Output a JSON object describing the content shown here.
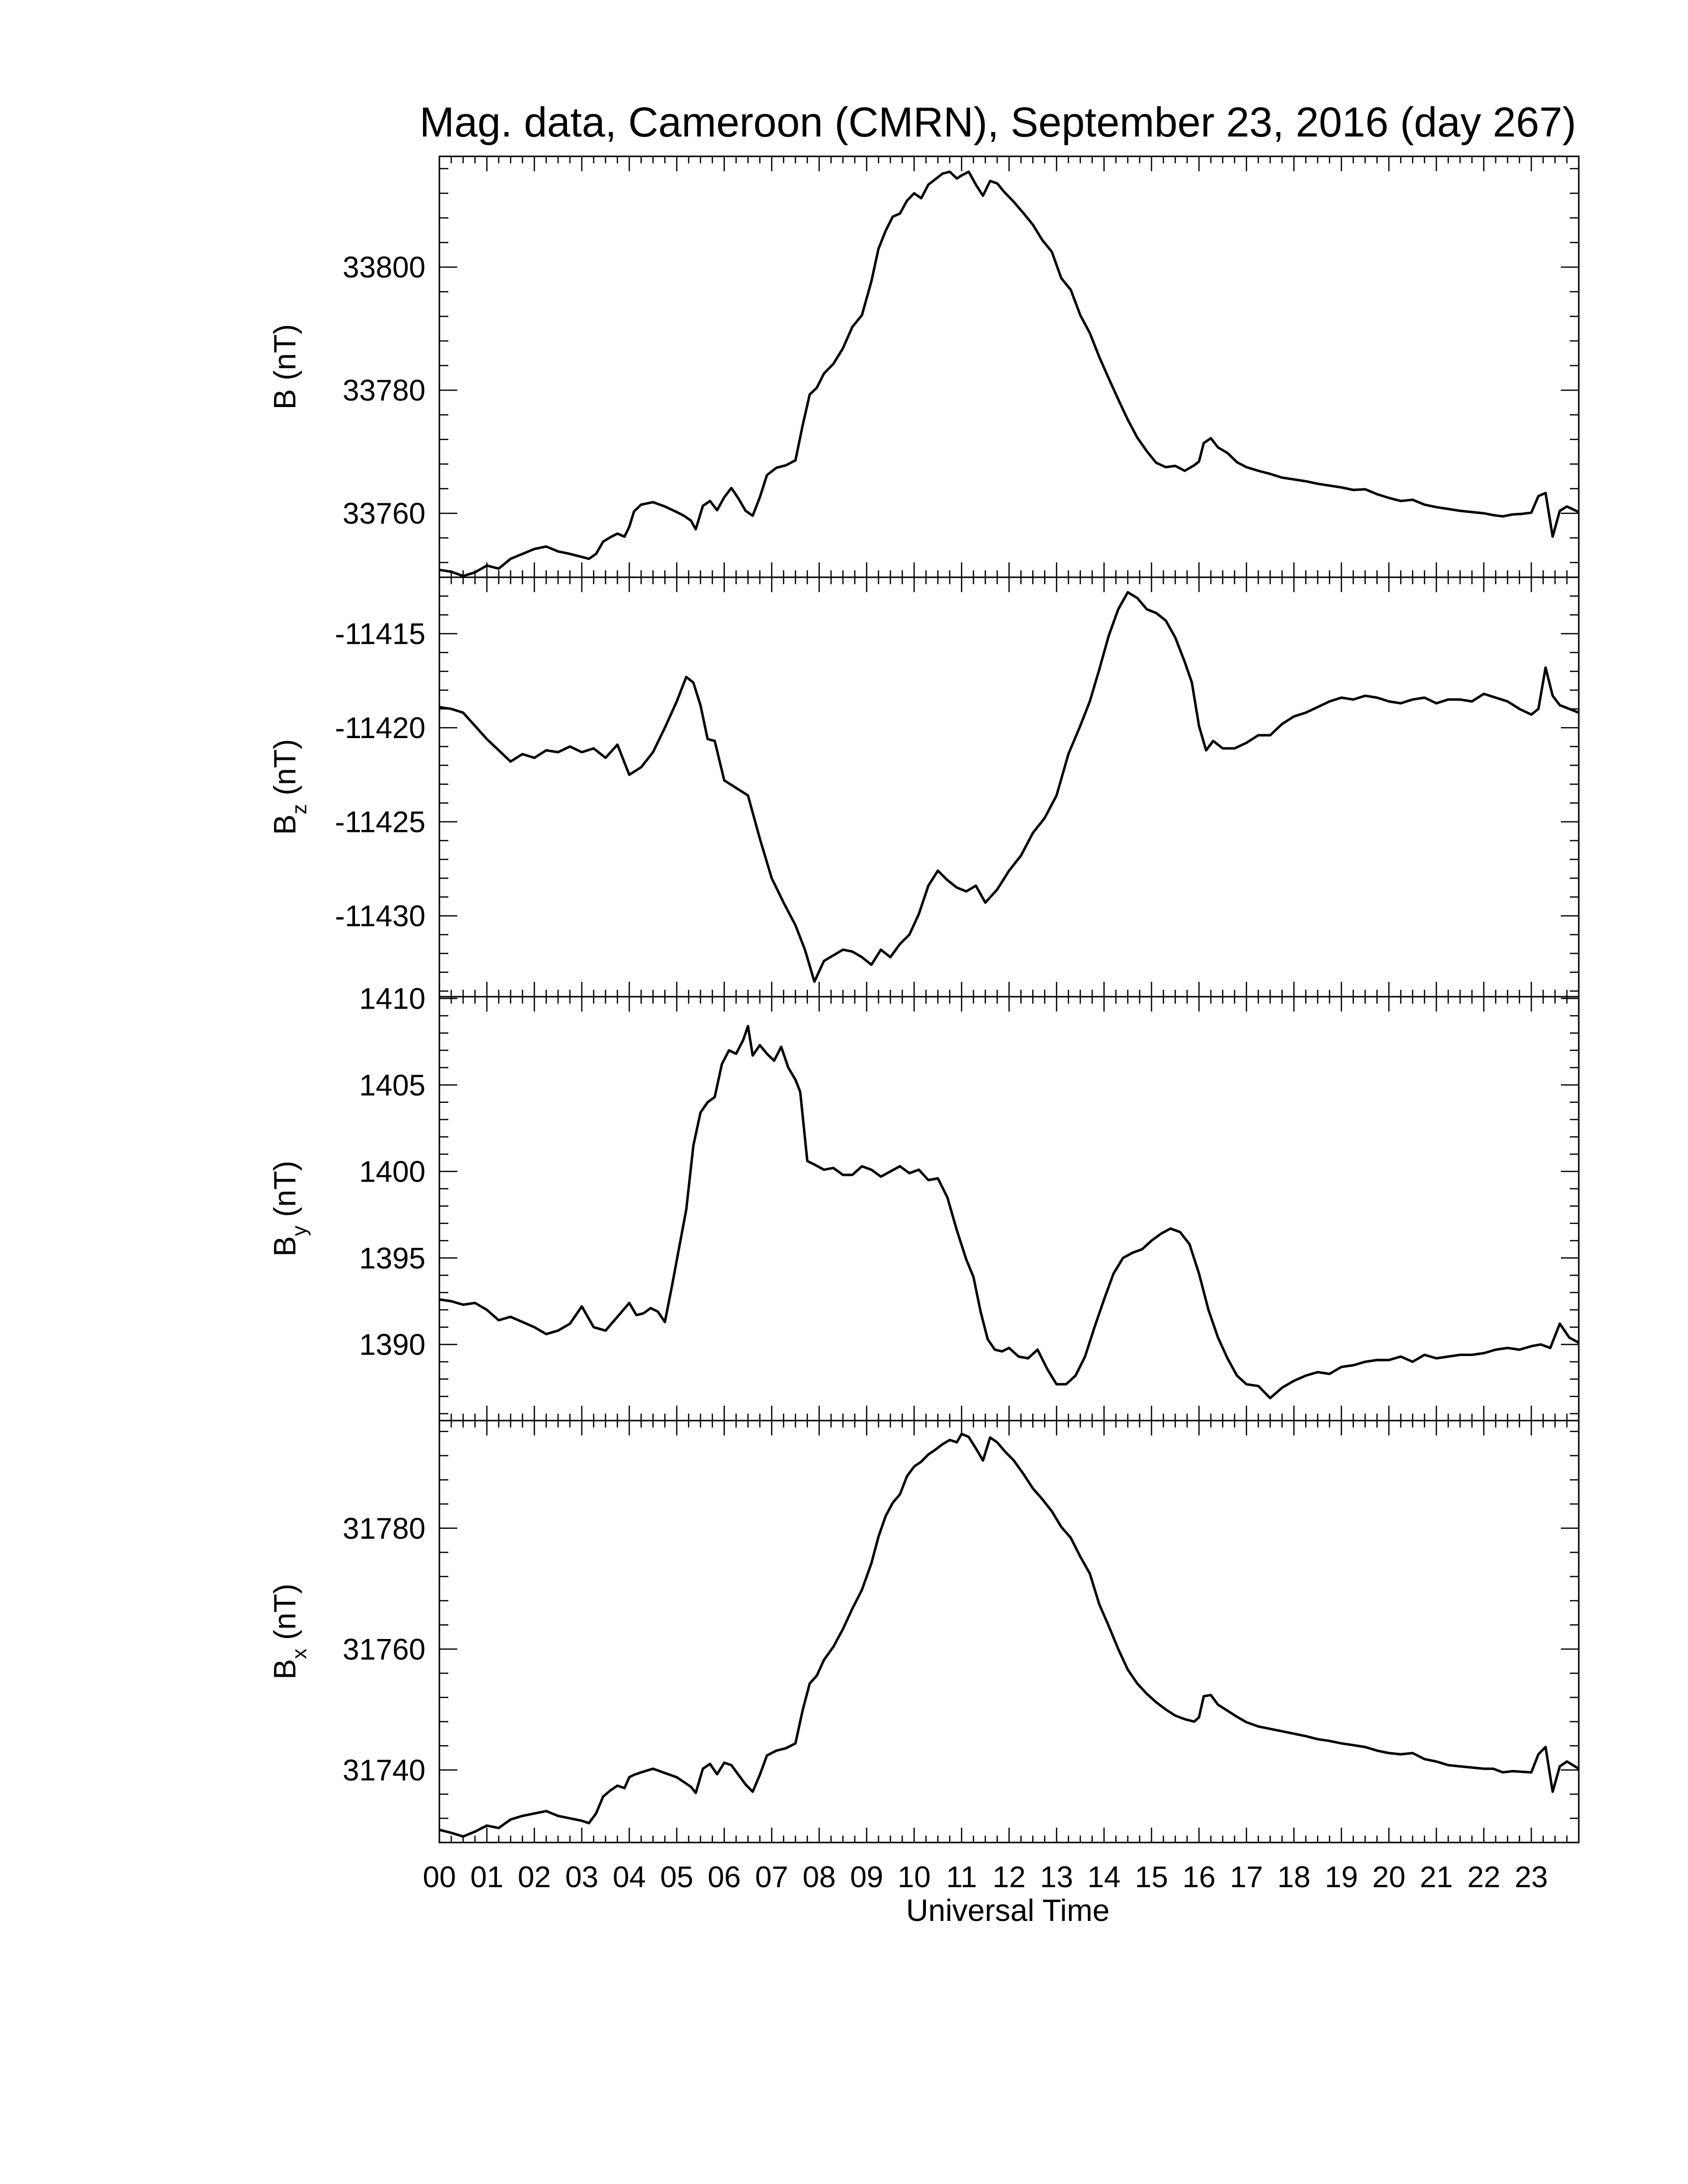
{
  "title": "Mag. data, Cameroon (CMRN), September 23, 2016 (day 267)",
  "xlabel": "Universal Time",
  "x_tick_labels": [
    "00",
    "01",
    "02",
    "03",
    "04",
    "05",
    "06",
    "07",
    "08",
    "09",
    "10",
    "11",
    "12",
    "13",
    "14",
    "15",
    "16",
    "17",
    "18",
    "19",
    "20",
    "21",
    "22",
    "23"
  ],
  "line_color": "#000000",
  "chart_data": [
    {
      "type": "line",
      "panel": "B",
      "ylabel_main": "B",
      "ylabel_sub": "",
      "ylabel_unit": "(nT)",
      "x_unit": "hours UT",
      "xlim": [
        0,
        24
      ],
      "ylim": [
        33749.6,
        33818.0
      ],
      "y_ticks": [
        33760,
        33780,
        33800
      ],
      "x": [
        0.0,
        0.25,
        0.5,
        0.75,
        1.0,
        1.25,
        1.5,
        1.75,
        2.0,
        2.25,
        2.5,
        2.75,
        3.0,
        3.15,
        3.3,
        3.45,
        3.6,
        3.75,
        3.9,
        4.0,
        4.1,
        4.25,
        4.5,
        4.75,
        5.0,
        5.15,
        5.3,
        5.4,
        5.55,
        5.7,
        5.85,
        6.0,
        6.15,
        6.3,
        6.45,
        6.6,
        6.75,
        6.9,
        7.1,
        7.3,
        7.5,
        7.65,
        7.8,
        7.95,
        8.1,
        8.3,
        8.5,
        8.7,
        8.9,
        9.1,
        9.25,
        9.4,
        9.55,
        9.7,
        9.85,
        10.0,
        10.15,
        10.3,
        10.45,
        10.6,
        10.75,
        10.9,
        11.0,
        11.15,
        11.3,
        11.45,
        11.6,
        11.75,
        11.9,
        12.1,
        12.3,
        12.5,
        12.7,
        12.9,
        13.1,
        13.3,
        13.5,
        13.7,
        13.9,
        14.1,
        14.3,
        14.5,
        14.7,
        14.9,
        15.1,
        15.3,
        15.5,
        15.7,
        15.9,
        16.0,
        16.1,
        16.25,
        16.4,
        16.6,
        16.8,
        17.0,
        17.25,
        17.5,
        17.75,
        18.0,
        18.25,
        18.5,
        18.75,
        19.0,
        19.25,
        19.5,
        19.75,
        20.0,
        20.25,
        20.5,
        20.75,
        21.0,
        21.25,
        21.5,
        21.75,
        22.0,
        22.2,
        22.4,
        22.6,
        22.8,
        23.0,
        23.15,
        23.3,
        23.45,
        23.6,
        23.75,
        24.0
      ],
      "values": [
        33750.8,
        33750.5,
        33749.8,
        33750.4,
        33751.5,
        33751.0,
        33752.6,
        33753.4,
        33754.2,
        33754.6,
        33753.8,
        33753.4,
        33752.9,
        33752.6,
        33753.4,
        33755.4,
        33756.1,
        33756.7,
        33756.2,
        33757.8,
        33760.3,
        33761.4,
        33761.8,
        33761.1,
        33760.2,
        33759.6,
        33758.8,
        33757.4,
        33761.2,
        33762.0,
        33760.5,
        33762.6,
        33764.1,
        33762.4,
        33760.4,
        33759.6,
        33762.6,
        33766.2,
        33767.4,
        33767.8,
        33768.6,
        33774.2,
        33779.3,
        33780.4,
        33782.7,
        33784.3,
        33786.8,
        33790.3,
        33792.2,
        33797.7,
        33803.0,
        33805.9,
        33808.2,
        33808.7,
        33810.8,
        33812.0,
        33811.2,
        33813.4,
        33814.3,
        33815.2,
        33815.5,
        33814.4,
        33814.9,
        33815.5,
        33813.4,
        33811.6,
        33814.0,
        33813.6,
        33812.2,
        33810.6,
        33808.8,
        33806.9,
        33804.4,
        33802.5,
        33798.2,
        33796.3,
        33792.2,
        33789.3,
        33785.4,
        33781.9,
        33778.5,
        33775.2,
        33772.3,
        33770.1,
        33768.2,
        33767.5,
        33767.7,
        33766.9,
        33767.8,
        33768.4,
        33771.4,
        33772.2,
        33770.7,
        33769.8,
        33768.3,
        33767.5,
        33766.9,
        33766.4,
        33765.8,
        33765.5,
        33765.2,
        33764.8,
        33764.5,
        33764.2,
        33763.8,
        33763.9,
        33763.1,
        33762.5,
        33762.0,
        33762.2,
        33761.4,
        33761.0,
        33760.7,
        33760.4,
        33760.2,
        33760.0,
        33759.7,
        33759.5,
        33759.8,
        33759.9,
        33760.1,
        33762.8,
        33763.3,
        33756.2,
        33760.4,
        33761.1,
        33760.2
      ]
    },
    {
      "type": "line",
      "panel": "Bz",
      "ylabel_main": "B",
      "ylabel_sub": "z",
      "ylabel_unit": "(nT)",
      "x_unit": "hours UT",
      "xlim": [
        0,
        24
      ],
      "ylim": [
        -11434.3,
        -11412.0
      ],
      "y_ticks": [
        -11430,
        -11425,
        -11420,
        -11415
      ],
      "x": [
        0.0,
        0.25,
        0.5,
        0.75,
        1.0,
        1.25,
        1.5,
        1.75,
        2.0,
        2.25,
        2.5,
        2.75,
        3.0,
        3.25,
        3.5,
        3.75,
        4.0,
        4.25,
        4.5,
        4.75,
        5.0,
        5.2,
        5.35,
        5.5,
        5.65,
        5.8,
        6.0,
        6.25,
        6.5,
        6.75,
        7.0,
        7.25,
        7.5,
        7.7,
        7.9,
        8.1,
        8.3,
        8.5,
        8.7,
        8.9,
        9.1,
        9.3,
        9.5,
        9.7,
        9.9,
        10.1,
        10.3,
        10.5,
        10.7,
        10.9,
        11.1,
        11.3,
        11.5,
        11.75,
        12.0,
        12.25,
        12.5,
        12.75,
        13.0,
        13.25,
        13.5,
        13.7,
        13.9,
        14.1,
        14.3,
        14.5,
        14.7,
        14.9,
        15.1,
        15.3,
        15.5,
        15.7,
        15.85,
        16.0,
        16.15,
        16.3,
        16.5,
        16.75,
        17.0,
        17.25,
        17.5,
        17.75,
        18.0,
        18.25,
        18.5,
        18.75,
        19.0,
        19.25,
        19.5,
        19.75,
        20.0,
        20.25,
        20.5,
        20.75,
        21.0,
        21.25,
        21.5,
        21.75,
        22.0,
        22.25,
        22.5,
        22.75,
        23.0,
        23.15,
        23.3,
        23.45,
        23.6,
        23.8,
        24.0
      ],
      "values": [
        -11418.9,
        -11419.0,
        -11419.2,
        -11419.9,
        -11420.6,
        -11421.2,
        -11421.8,
        -11421.4,
        -11421.6,
        -11421.2,
        -11421.3,
        -11421.0,
        -11421.3,
        -11421.1,
        -11421.6,
        -11420.9,
        -11422.5,
        -11422.1,
        -11421.3,
        -11420.0,
        -11418.6,
        -11417.3,
        -11417.6,
        -11418.8,
        -11420.6,
        -11420.7,
        -11422.8,
        -11423.2,
        -11423.6,
        -11425.9,
        -11428.0,
        -11429.3,
        -11430.5,
        -11431.8,
        -11433.5,
        -11432.4,
        -11432.1,
        -11431.8,
        -11431.9,
        -11432.2,
        -11432.6,
        -11431.8,
        -11432.2,
        -11431.5,
        -11431.0,
        -11429.9,
        -11428.4,
        -11427.6,
        -11428.1,
        -11428.5,
        -11428.7,
        -11428.4,
        -11429.3,
        -11428.6,
        -11427.6,
        -11426.8,
        -11425.6,
        -11424.8,
        -11423.6,
        -11421.4,
        -11419.9,
        -11418.6,
        -11416.9,
        -11415.1,
        -11413.7,
        -11412.8,
        -11413.1,
        -11413.7,
        -11413.9,
        -11414.3,
        -11415.2,
        -11416.5,
        -11417.6,
        -11419.9,
        -11421.2,
        -11420.7,
        -11421.1,
        -11421.1,
        -11420.8,
        -11420.4,
        -11420.4,
        -11419.8,
        -11419.4,
        -11419.2,
        -11418.9,
        -11418.6,
        -11418.4,
        -11418.5,
        -11418.3,
        -11418.4,
        -11418.6,
        -11418.7,
        -11418.5,
        -11418.4,
        -11418.7,
        -11418.5,
        -11418.5,
        -11418.6,
        -11418.2,
        -11418.4,
        -11418.6,
        -11419.0,
        -11419.3,
        -11419.0,
        -11416.8,
        -11418.3,
        -11418.8,
        -11419.0,
        -11419.2
      ]
    },
    {
      "type": "line",
      "panel": "By",
      "ylabel_main": "B",
      "ylabel_sub": "y",
      "ylabel_unit": "(nT)",
      "x_unit": "hours UT",
      "xlim": [
        0,
        24
      ],
      "ylim": [
        1385.6,
        1410.1
      ],
      "y_ticks": [
        1390,
        1395,
        1400,
        1405,
        1410
      ],
      "x": [
        0.0,
        0.25,
        0.5,
        0.75,
        1.0,
        1.25,
        1.5,
        1.75,
        2.0,
        2.25,
        2.5,
        2.75,
        3.0,
        3.25,
        3.5,
        3.75,
        4.0,
        4.15,
        4.3,
        4.45,
        4.6,
        4.75,
        4.9,
        5.05,
        5.2,
        5.35,
        5.5,
        5.65,
        5.8,
        5.95,
        6.1,
        6.25,
        6.4,
        6.5,
        6.6,
        6.75,
        6.9,
        7.05,
        7.2,
        7.35,
        7.5,
        7.6,
        7.75,
        7.9,
        8.1,
        8.3,
        8.5,
        8.7,
        8.9,
        9.1,
        9.3,
        9.5,
        9.7,
        9.9,
        10.1,
        10.3,
        10.5,
        10.7,
        10.9,
        11.1,
        11.25,
        11.4,
        11.55,
        11.7,
        11.85,
        12.0,
        12.2,
        12.4,
        12.6,
        12.8,
        13.0,
        13.2,
        13.4,
        13.6,
        13.8,
        14.0,
        14.2,
        14.4,
        14.6,
        14.8,
        15.0,
        15.2,
        15.4,
        15.6,
        15.8,
        16.0,
        16.2,
        16.4,
        16.6,
        16.8,
        17.0,
        17.25,
        17.5,
        17.75,
        18.0,
        18.25,
        18.5,
        18.75,
        19.0,
        19.25,
        19.5,
        19.75,
        20.0,
        20.25,
        20.5,
        20.75,
        21.0,
        21.25,
        21.5,
        21.75,
        22.0,
        22.25,
        22.5,
        22.75,
        23.0,
        23.2,
        23.4,
        23.6,
        23.8,
        24.0
      ],
      "values": [
        1392.6,
        1392.5,
        1392.3,
        1392.4,
        1392.0,
        1391.4,
        1391.6,
        1391.3,
        1391.0,
        1390.6,
        1390.8,
        1391.2,
        1392.2,
        1391.0,
        1390.8,
        1391.6,
        1392.4,
        1391.7,
        1391.8,
        1392.1,
        1391.9,
        1391.3,
        1393.4,
        1395.6,
        1397.8,
        1401.5,
        1403.4,
        1404.0,
        1404.3,
        1406.2,
        1407.0,
        1406.8,
        1407.6,
        1408.4,
        1406.7,
        1407.3,
        1406.8,
        1406.4,
        1407.2,
        1406.0,
        1405.3,
        1404.6,
        1400.6,
        1400.4,
        1400.1,
        1400.2,
        1399.8,
        1399.8,
        1400.3,
        1400.1,
        1399.7,
        1400.0,
        1400.3,
        1399.9,
        1400.1,
        1399.5,
        1399.6,
        1398.5,
        1396.6,
        1394.9,
        1393.9,
        1391.9,
        1390.3,
        1389.7,
        1389.6,
        1389.8,
        1389.3,
        1389.2,
        1389.7,
        1388.6,
        1387.7,
        1387.7,
        1388.2,
        1389.3,
        1391.0,
        1392.6,
        1394.1,
        1395.0,
        1395.3,
        1395.5,
        1396.0,
        1396.4,
        1396.7,
        1396.5,
        1395.8,
        1394.1,
        1392.0,
        1390.4,
        1389.2,
        1388.2,
        1387.7,
        1387.6,
        1386.9,
        1387.5,
        1387.9,
        1388.2,
        1388.4,
        1388.3,
        1388.7,
        1388.8,
        1389.0,
        1389.1,
        1389.1,
        1389.3,
        1389.0,
        1389.4,
        1389.2,
        1389.3,
        1389.4,
        1389.4,
        1389.5,
        1389.7,
        1389.8,
        1389.7,
        1389.9,
        1390.0,
        1389.8,
        1391.2,
        1390.4,
        1390.1
      ]
    },
    {
      "type": "line",
      "panel": "Bx",
      "ylabel_main": "B",
      "ylabel_sub": "x",
      "ylabel_unit": "(nT)",
      "x_unit": "hours UT",
      "xlim": [
        0,
        24
      ],
      "ylim": [
        31728.0,
        31797.8
      ],
      "y_ticks": [
        31740,
        31760,
        31780
      ],
      "x": [
        0.0,
        0.25,
        0.5,
        0.75,
        1.0,
        1.25,
        1.5,
        1.75,
        2.0,
        2.25,
        2.5,
        2.75,
        3.0,
        3.15,
        3.3,
        3.45,
        3.6,
        3.75,
        3.9,
        4.0,
        4.1,
        4.25,
        4.5,
        4.75,
        5.0,
        5.15,
        5.3,
        5.4,
        5.55,
        5.7,
        5.85,
        6.0,
        6.15,
        6.3,
        6.45,
        6.6,
        6.75,
        6.9,
        7.1,
        7.3,
        7.5,
        7.65,
        7.8,
        7.95,
        8.1,
        8.3,
        8.5,
        8.7,
        8.9,
        9.1,
        9.25,
        9.4,
        9.55,
        9.7,
        9.85,
        10.0,
        10.15,
        10.3,
        10.45,
        10.6,
        10.75,
        10.9,
        11.0,
        11.15,
        11.3,
        11.45,
        11.6,
        11.75,
        11.9,
        12.1,
        12.3,
        12.5,
        12.7,
        12.9,
        13.1,
        13.3,
        13.5,
        13.7,
        13.9,
        14.1,
        14.3,
        14.5,
        14.7,
        14.9,
        15.1,
        15.3,
        15.5,
        15.7,
        15.9,
        16.0,
        16.1,
        16.25,
        16.4,
        16.6,
        16.8,
        17.0,
        17.25,
        17.5,
        17.75,
        18.0,
        18.25,
        18.5,
        18.75,
        19.0,
        19.25,
        19.5,
        19.75,
        20.0,
        20.25,
        20.5,
        20.75,
        21.0,
        21.25,
        21.5,
        21.75,
        22.0,
        22.2,
        22.4,
        22.6,
        22.8,
        23.0,
        23.15,
        23.3,
        23.45,
        23.6,
        23.75,
        24.0
      ],
      "values": [
        31730.1,
        31729.6,
        31729.0,
        31729.8,
        31730.8,
        31730.4,
        31731.8,
        31732.4,
        31732.8,
        31733.2,
        31732.4,
        31732.0,
        31731.6,
        31731.2,
        31732.8,
        31735.6,
        31736.6,
        31737.4,
        31737.0,
        31738.8,
        31739.2,
        31739.6,
        31740.2,
        31739.5,
        31738.8,
        31738.0,
        31737.2,
        31736.2,
        31740.2,
        31741.0,
        31739.3,
        31741.2,
        31740.8,
        31739.2,
        31737.6,
        31736.4,
        31739.2,
        31742.4,
        31743.2,
        31743.6,
        31744.4,
        31749.8,
        31754.3,
        31755.6,
        31758.2,
        31760.4,
        31763.3,
        31766.7,
        31769.8,
        31774.2,
        31778.6,
        31782.0,
        31784.2,
        31785.6,
        31788.6,
        31790.2,
        31791.0,
        31792.2,
        31793.0,
        31793.9,
        31794.6,
        31794.2,
        31795.6,
        31795.1,
        31793.2,
        31791.2,
        31795.0,
        31794.2,
        31792.8,
        31791.2,
        31789.0,
        31786.6,
        31784.8,
        31782.8,
        31780.2,
        31778.4,
        31775.3,
        31772.5,
        31767.4,
        31763.8,
        31760.0,
        31756.6,
        31754.3,
        31752.6,
        31751.2,
        31750.0,
        31749.0,
        31748.4,
        31748.0,
        31748.7,
        31752.2,
        31752.4,
        31750.8,
        31749.8,
        31748.8,
        31747.9,
        31747.2,
        31746.8,
        31746.4,
        31746.0,
        31745.6,
        31745.1,
        31744.8,
        31744.4,
        31744.1,
        31743.8,
        31743.2,
        31742.8,
        31742.6,
        31742.8,
        31741.8,
        31741.4,
        31740.8,
        31740.6,
        31740.4,
        31740.2,
        31740.2,
        31739.6,
        31739.8,
        31739.7,
        31739.6,
        31742.6,
        31743.8,
        31736.4,
        31740.6,
        31741.4,
        31740.2
      ]
    }
  ]
}
